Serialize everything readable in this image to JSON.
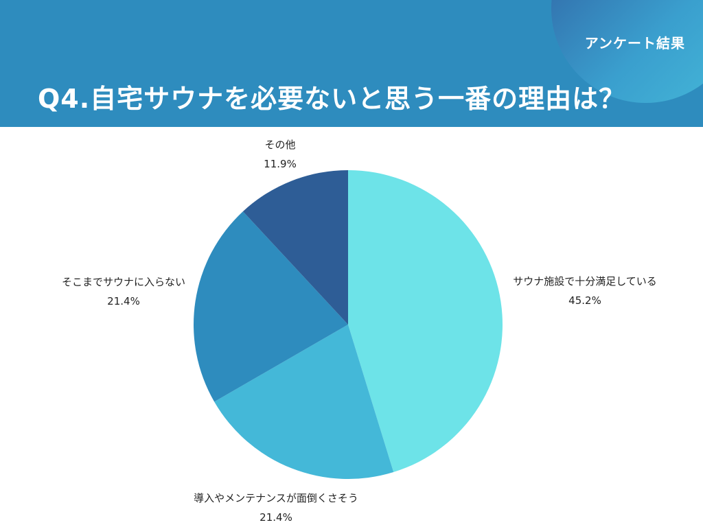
{
  "header": {
    "badge": "アンケート結果",
    "title": "Q4.自宅サウナを必要ないと思う一番の理由は？"
  },
  "colors": {
    "header_bg": "#2e8cbe",
    "corner_circle": "#2f5d9f"
  },
  "chart_data": {
    "type": "pie",
    "title": "Q4.自宅サウナを必要ないと思う一番の理由は？",
    "slices": [
      {
        "label": "サウナ施設で十分満足している",
        "value": 45.2,
        "value_label": "45.2%",
        "color": "#6de3e8"
      },
      {
        "label": "導入やメンテナンスが面倒くさそう",
        "value": 21.4,
        "value_label": "21.4%",
        "color": "#44b8d8"
      },
      {
        "label": "そこまでサウナに入らない",
        "value": 21.4,
        "value_label": "21.4%",
        "color": "#2e8cbe"
      },
      {
        "label": "その他",
        "value": 11.9,
        "value_label": "11.9%",
        "color": "#2e5d96"
      }
    ],
    "start_angle": "top",
    "direction": "clockwise",
    "legend": "none"
  }
}
